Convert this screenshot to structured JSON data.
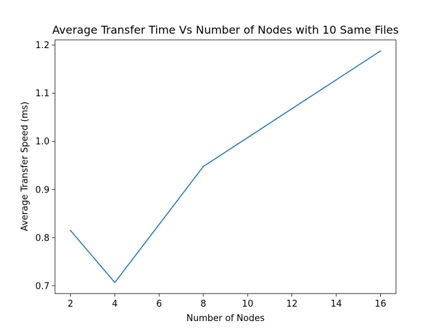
{
  "chart_data": {
    "type": "line",
    "title": "Average Transfer Time Vs Number of Nodes with 10 Same Files",
    "xlabel": "Number of Nodes",
    "ylabel": "Average Transfer Speed (ms)",
    "xlim": [
      1.3,
      16.7
    ],
    "ylim": [
      0.684,
      1.211
    ],
    "xticks": [
      2,
      4,
      6,
      8,
      10,
      12,
      14,
      16
    ],
    "yticks": [
      0.7,
      0.8,
      0.9,
      1.0,
      1.1,
      1.2
    ],
    "xtick_labels": [
      "2",
      "4",
      "6",
      "8",
      "10",
      "12",
      "14",
      "16"
    ],
    "ytick_labels": [
      "0.7",
      "0.8",
      "0.9",
      "1.0",
      "1.1",
      "1.2"
    ],
    "grid": false,
    "series": [
      {
        "color": "#1f77b4",
        "x": [
          2,
          4,
          8,
          16
        ],
        "y": [
          0.815,
          0.707,
          0.948,
          1.188
        ]
      }
    ]
  }
}
